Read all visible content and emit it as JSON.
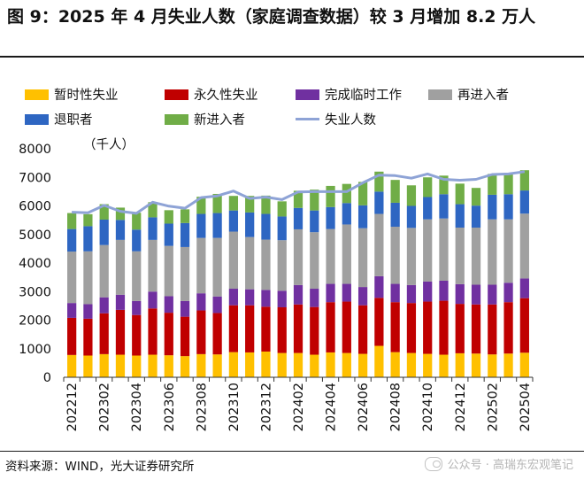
{
  "title": "图 9：2025 年 4 月失业人数（家庭调查数据）较 3 月增加 8.2 万人",
  "source": "资料来源：WIND，光大证券研究所",
  "watermark": "公众号 · 高瑞东宏观笔记",
  "chart_data": {
    "type": "bar",
    "stacked": true,
    "unit_label": "（千人）",
    "ylim": [
      0,
      8000
    ],
    "yticks": [
      0,
      1000,
      2000,
      3000,
      4000,
      5000,
      6000,
      7000,
      8000
    ],
    "categories": [
      "202212",
      "202301",
      "202302",
      "202303",
      "202304",
      "202305",
      "202306",
      "202307",
      "202308",
      "202309",
      "202310",
      "202311",
      "202312",
      "202401",
      "202402",
      "202403",
      "202404",
      "202405",
      "202406",
      "202407",
      "202408",
      "202409",
      "202410",
      "202411",
      "202412",
      "202501",
      "202502",
      "202503",
      "202504"
    ],
    "x_tick_labels": [
      "202212",
      "202302",
      "202304",
      "202306",
      "202308",
      "202310",
      "202312",
      "202402",
      "202404",
      "202406",
      "202408",
      "202410",
      "202412",
      "202502",
      "202504"
    ],
    "series": [
      {
        "name": "暂时性失业",
        "color": "#ffc000",
        "values": [
          780,
          760,
          810,
          790,
          760,
          790,
          770,
          740,
          810,
          800,
          880,
          870,
          900,
          850,
          850,
          790,
          870,
          850,
          820,
          1100,
          880,
          850,
          820,
          790,
          840,
          830,
          800,
          830,
          860
        ]
      },
      {
        "name": "永久性失业",
        "color": "#c00000",
        "values": [
          1300,
          1290,
          1430,
          1570,
          1420,
          1620,
          1490,
          1380,
          1530,
          1450,
          1640,
          1650,
          1570,
          1600,
          1700,
          1670,
          1760,
          1800,
          1700,
          1680,
          1750,
          1750,
          1830,
          1890,
          1730,
          1720,
          1750,
          1800,
          1910
        ]
      },
      {
        "name": "完成临时工作",
        "color": "#7030a0",
        "values": [
          520,
          510,
          560,
          530,
          490,
          590,
          580,
          550,
          600,
          580,
          580,
          560,
          590,
          580,
          680,
          640,
          640,
          620,
          640,
          760,
          640,
          630,
          700,
          700,
          690,
          690,
          690,
          680,
          690
        ]
      },
      {
        "name": "再进入者",
        "color": "#a0a0a0",
        "values": [
          1800,
          1850,
          1830,
          1920,
          1740,
          1810,
          1760,
          1890,
          1940,
          2050,
          2000,
          1830,
          1760,
          1770,
          1950,
          1980,
          1920,
          2080,
          2060,
          2180,
          2000,
          2000,
          2180,
          2180,
          1980,
          2000,
          2290,
          2220,
          2270
        ]
      },
      {
        "name": "退职者",
        "color": "#2e66c2",
        "values": [
          790,
          880,
          890,
          700,
          760,
          790,
          780,
          840,
          840,
          870,
          740,
          860,
          900,
          830,
          750,
          760,
          770,
          750,
          800,
          780,
          840,
          770,
          780,
          850,
          820,
          770,
          860,
          880,
          810
        ]
      },
      {
        "name": "新进入者",
        "color": "#70ad47",
        "values": [
          560,
          420,
          540,
          430,
          590,
          530,
          470,
          480,
          600,
          670,
          510,
          580,
          640,
          530,
          600,
          730,
          740,
          670,
          820,
          700,
          800,
          720,
          690,
          650,
          720,
          620,
          730,
          700,
          710
        ]
      }
    ],
    "line_series": {
      "name": "失业人数",
      "color": "#8ea3d6",
      "values": [
        5780,
        5760,
        6020,
        5810,
        5740,
        6130,
        5990,
        5920,
        6290,
        6350,
        6520,
        6260,
        6310,
        6220,
        6490,
        6500,
        6500,
        6500,
        6810,
        7080,
        7060,
        6970,
        7120,
        6930,
        6900,
        6930,
        7100,
        7120,
        7200
      ]
    }
  }
}
